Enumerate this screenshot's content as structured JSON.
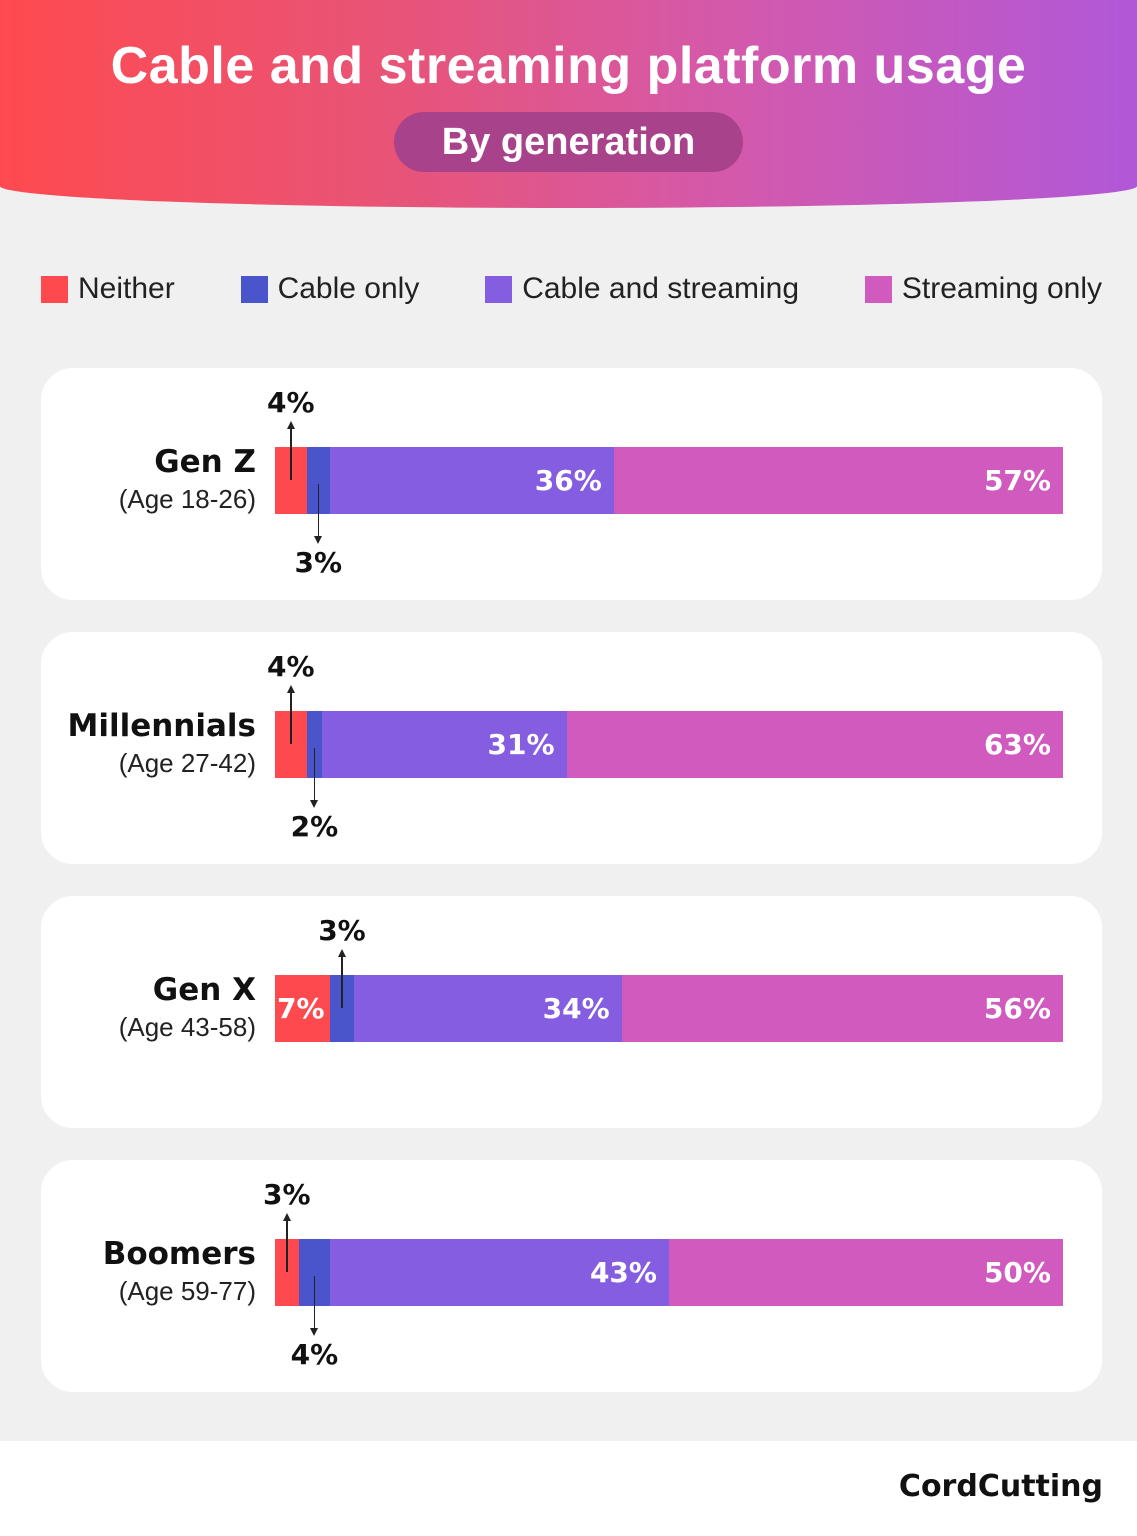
{
  "title": "Cable and streaming platform usage",
  "subtitle": "By generation",
  "logo": "CordCutting",
  "chart_data": {
    "type": "bar",
    "orientation": "horizontal-stacked-100",
    "title": "Cable and streaming platform usage",
    "subtitle": "By generation",
    "legend_position": "top",
    "series": [
      {
        "name": "Neither",
        "color": "#fe4a4f",
        "values": [
          4,
          4,
          7,
          3
        ]
      },
      {
        "name": "Cable only",
        "color": "#4a55cc",
        "values": [
          3,
          2,
          3,
          4
        ]
      },
      {
        "name": "Cable and streaming",
        "color": "#855de0",
        "values": [
          36,
          31,
          34,
          43
        ]
      },
      {
        "name": "Streaming only",
        "color": "#d05abd",
        "values": [
          57,
          63,
          56,
          50
        ]
      }
    ],
    "categories": [
      {
        "name": "Gen Z",
        "age": "(Age 18-26)",
        "labels": [
          "4%",
          "3%",
          "36%",
          "57%"
        ],
        "placement": [
          "above",
          "below",
          "inside",
          "inside"
        ]
      },
      {
        "name": "Millennials",
        "age": "(Age 27-42)",
        "labels": [
          "4%",
          "2%",
          "31%",
          "63%"
        ],
        "placement": [
          "above",
          "below",
          "inside",
          "inside"
        ]
      },
      {
        "name": "Gen X",
        "age": "(Age 43-58)",
        "labels": [
          "7%",
          "3%",
          "34%",
          "56%"
        ],
        "placement": [
          "inside",
          "above",
          "inside",
          "inside"
        ]
      },
      {
        "name": "Boomers",
        "age": "(Age 59-77)",
        "labels": [
          "3%",
          "4%",
          "43%",
          "50%"
        ],
        "placement": [
          "above",
          "below",
          "inside",
          "inside"
        ]
      }
    ]
  }
}
